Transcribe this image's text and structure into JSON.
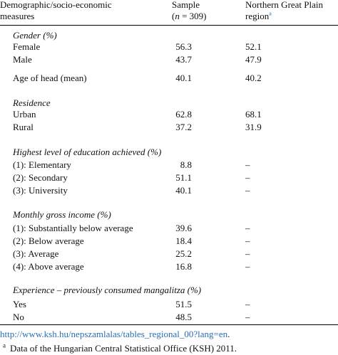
{
  "header": {
    "col1_line1": "Demographic/socio-economic",
    "col1_line2": "measures",
    "col2_line1": "Sample",
    "col2_line2_pre": "(",
    "col2_line2_n": "n",
    "col2_line2_post": " = 309)",
    "col3_line1": "Northern Great Plain",
    "col3_line2": "region",
    "col3_footnote_mark": "a"
  },
  "sections": [
    {
      "title": "Gender (%)",
      "rows": [
        {
          "label": "Female",
          "sample": "56.3",
          "region": "52.1"
        },
        {
          "label": "Male",
          "sample": "43.7",
          "region": "47.9"
        }
      ]
    },
    {
      "title": "",
      "rows": [
        {
          "label": "Age of head (mean)",
          "sample": "40.1",
          "region": "40.2"
        }
      ]
    },
    {
      "title": "Residence",
      "rows": [
        {
          "label": "Urban",
          "sample": "62.8",
          "region": "68.1"
        },
        {
          "label": "Rural",
          "sample": "37.2",
          "region": "31.9"
        }
      ]
    },
    {
      "title": "Highest level of education achieved (%)",
      "rows": [
        {
          "label": "(1): Elementary",
          "sample": "8.8",
          "region": "–"
        },
        {
          "label": "(2): Secondary",
          "sample": "51.1",
          "region": "–"
        },
        {
          "label": "(3): University",
          "sample": "40.1",
          "region": "–"
        }
      ]
    },
    {
      "title": "Monthly gross income (%)",
      "rows": [
        {
          "label": "(1): Substantially below average",
          "sample": "39.6",
          "region": "–"
        },
        {
          "label": "(2): Below average",
          "sample": "18.4",
          "region": "–"
        },
        {
          "label": "(3): Average",
          "sample": "25.2",
          "region": "–"
        },
        {
          "label": "(4): Above average",
          "sample": "16.8",
          "region": "–"
        }
      ]
    },
    {
      "title": "Experience – previously consumed mangalitza (%)",
      "rows": [
        {
          "label": "Yes",
          "sample": "51.5",
          "region": "–"
        },
        {
          "label": "No",
          "sample": "48.5",
          "region": "–"
        }
      ]
    }
  ],
  "footer": {
    "link_text": "http://www.ksh.hu/nepszamlalas/tables_regional_00?lang=en",
    "link_suffix": ".",
    "note_mark": "a",
    "note_text": "Data of the Hungarian Central Statistical Office (KSH) 2011."
  }
}
